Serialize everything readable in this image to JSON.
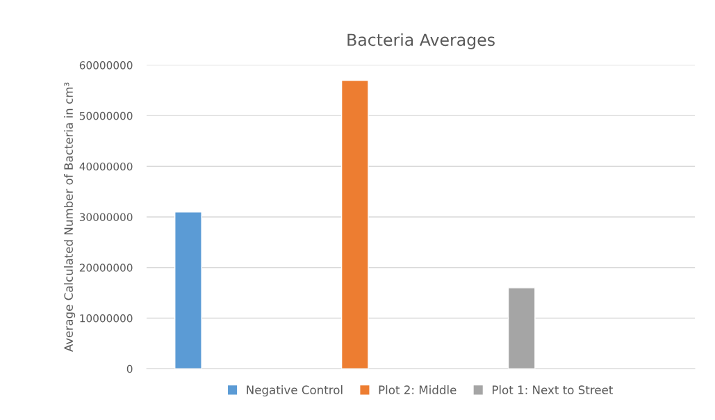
{
  "chart_data": {
    "type": "bar",
    "title": "Bacteria Averages",
    "ylabel": "Average Calculated Number of Bacteria in cm³",
    "categories": [
      null,
      null,
      null
    ],
    "series": [
      {
        "name": "Negative Control",
        "color": "#5b9bd5",
        "values": [
          31000000,
          null,
          null
        ]
      },
      {
        "name": "Plot 2: Middle",
        "color": "#ed7d31",
        "values": [
          null,
          57000000,
          null
        ]
      },
      {
        "name": "Plot 1: Next to Street",
        "color": "#a5a5a5",
        "values": [
          null,
          null,
          16000000
        ]
      }
    ],
    "ylim": [
      0,
      60000000
    ],
    "yticks": [
      0,
      10000000,
      20000000,
      30000000,
      40000000,
      50000000,
      60000000
    ],
    "grid": "y",
    "legend": "bottom"
  }
}
